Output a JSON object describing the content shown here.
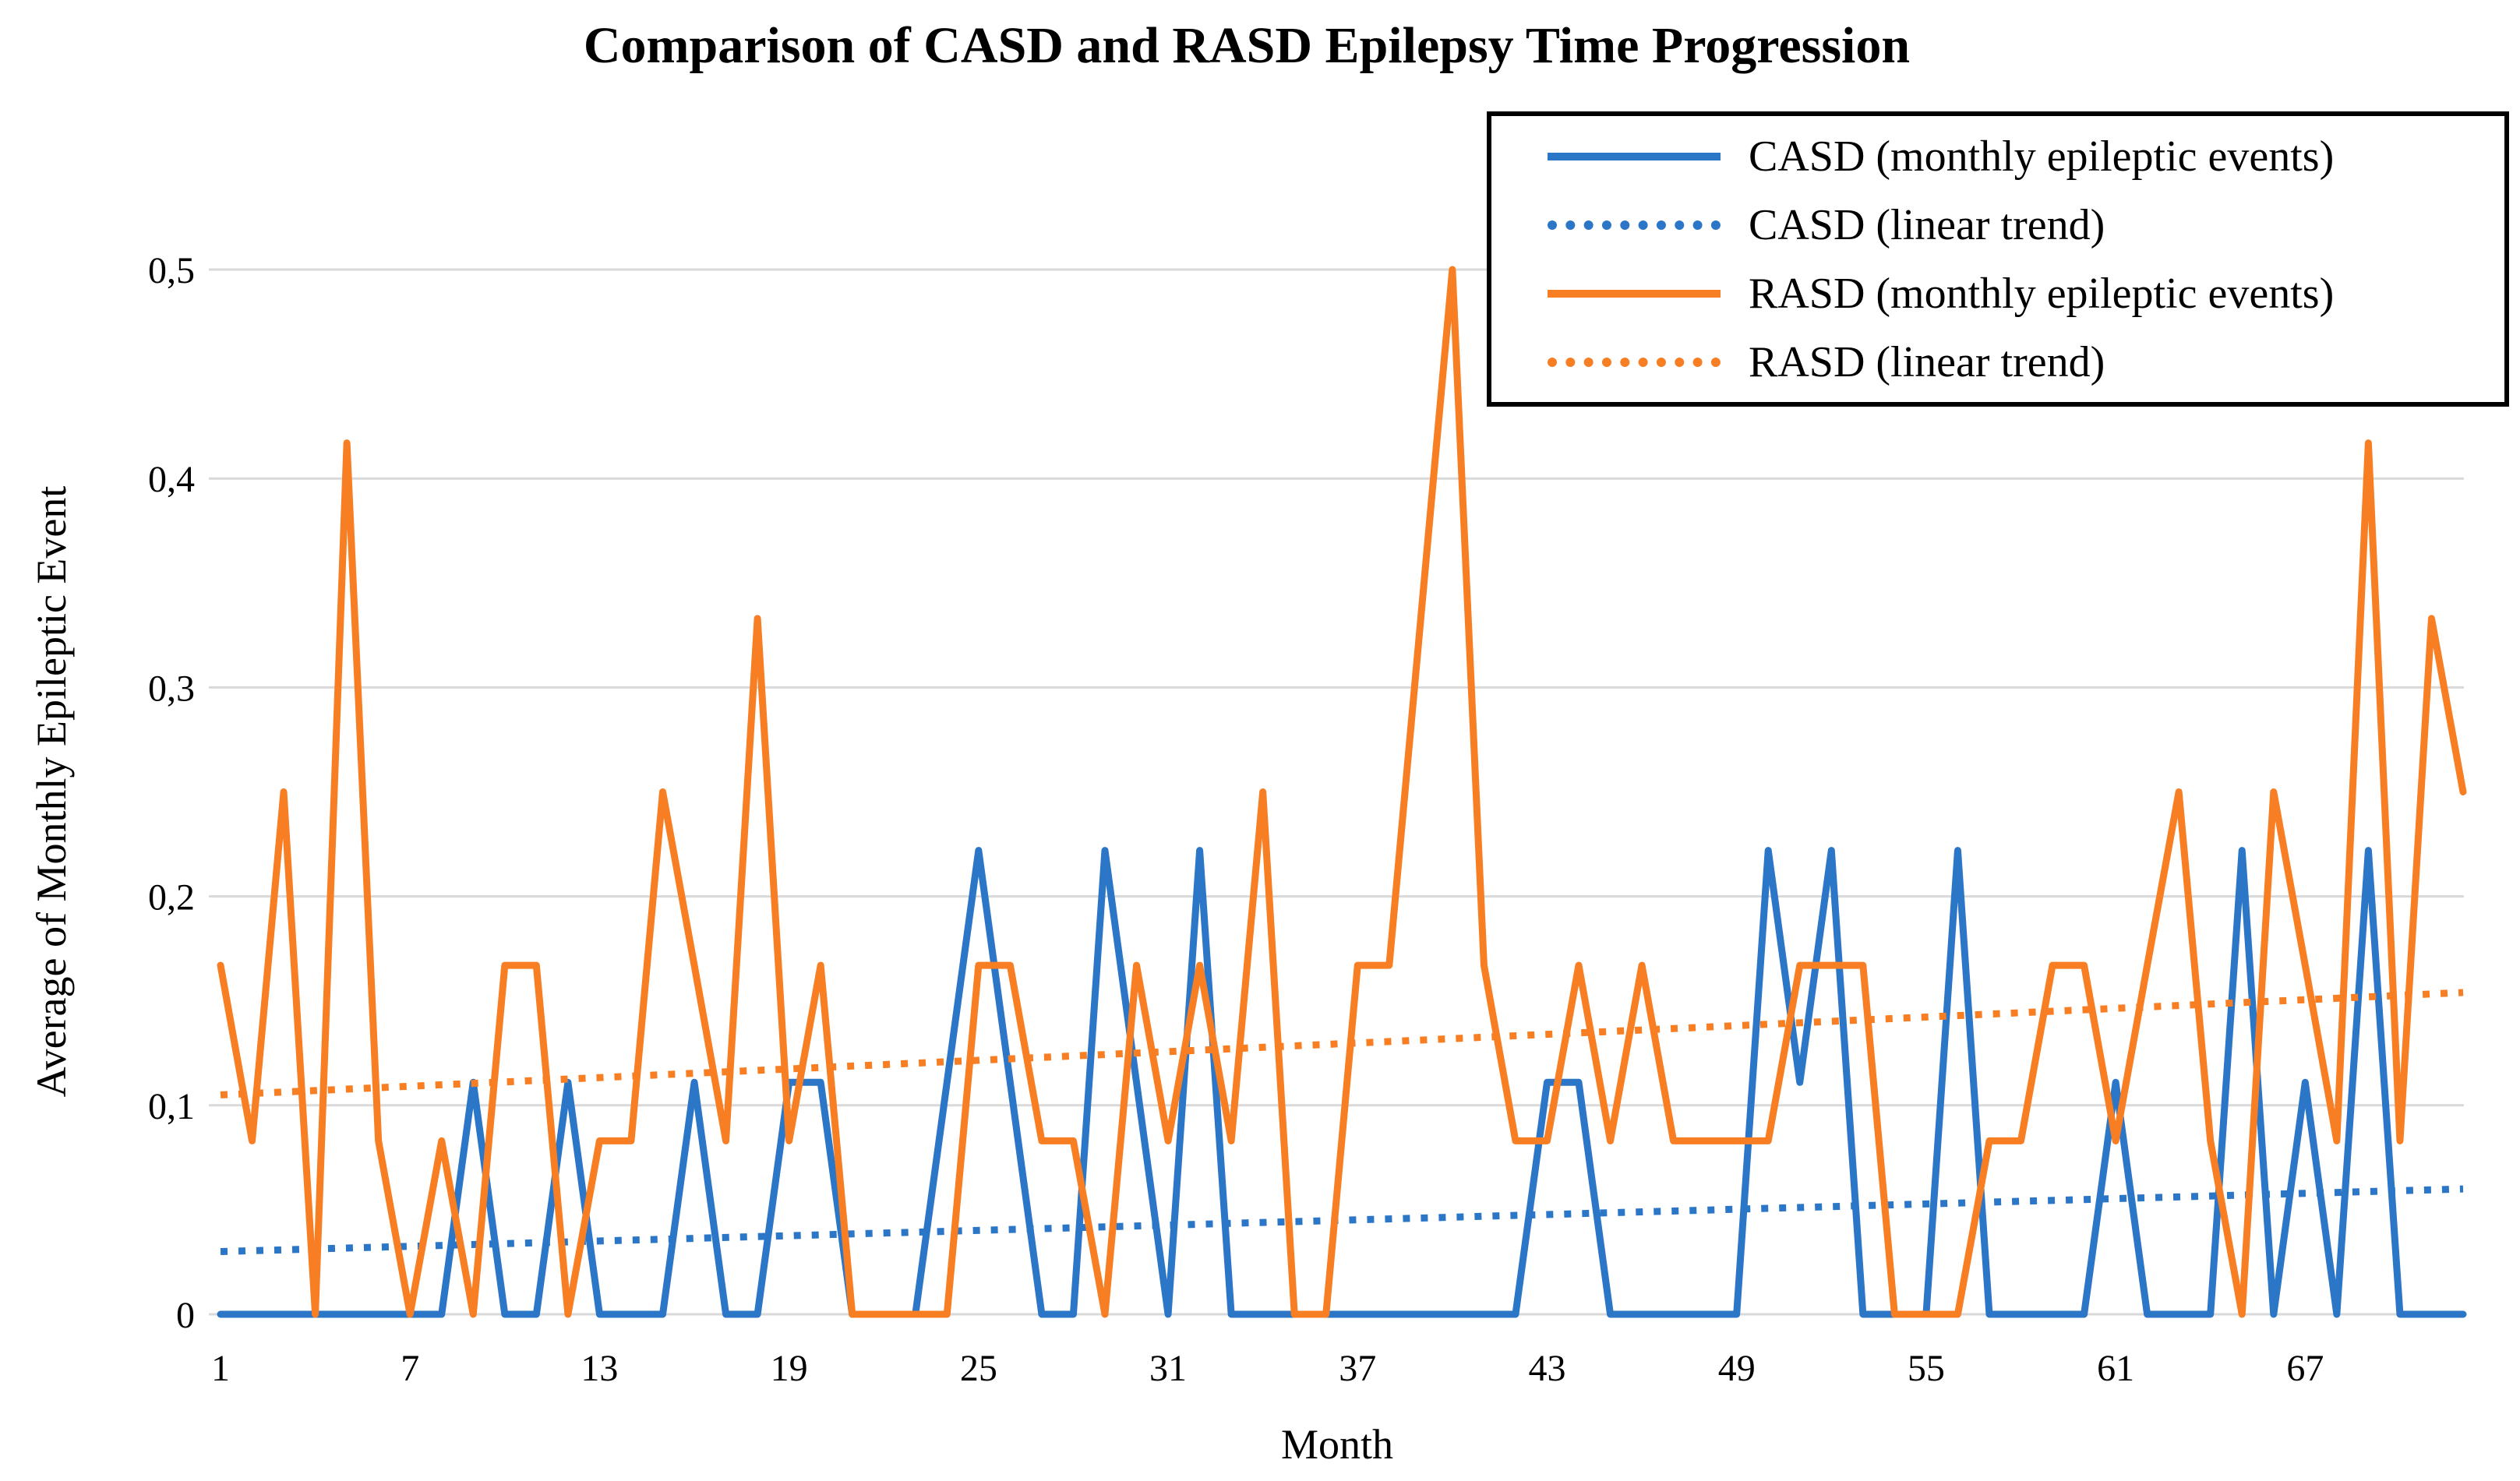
{
  "title": "Comparison of CASD and RASD Epilepsy Time Progression",
  "axes": {
    "x_label": "Month",
    "y_label": "Average of Monthly Epileptic Event",
    "x_ticks": [
      1,
      7,
      13,
      19,
      25,
      31,
      37,
      43,
      49,
      55,
      61,
      67
    ],
    "y_ticks": [
      "0",
      "0,1",
      "0,2",
      "0,3",
      "0,4",
      "0,5"
    ],
    "y_tick_step": 0.1,
    "ylim": [
      0,
      0.5
    ],
    "x_range": [
      1,
      72
    ],
    "grid": true,
    "decimal_separator": ","
  },
  "legend": {
    "position": "top-right",
    "items": [
      {
        "id": "casd-monthly",
        "label": "CASD (monthly epileptic events)",
        "color": "#2B76C6",
        "style": "solid"
      },
      {
        "id": "casd-trend",
        "label": "CASD (linear trend)",
        "color": "#2B76C6",
        "style": "dotted"
      },
      {
        "id": "rasd-monthly",
        "label": "RASD (monthly epileptic events)",
        "color": "#F87E23",
        "style": "solid"
      },
      {
        "id": "rasd-trend",
        "label": "RASD (linear trend)",
        "color": "#F87E23",
        "style": "dotted"
      }
    ]
  },
  "chart_data": {
    "type": "line",
    "title": "Comparison of CASD and RASD Epilepsy Time Progression",
    "xlabel": "Month",
    "ylabel": "Average of Monthly Epileptic Event",
    "ylim": [
      0,
      0.5
    ],
    "grid": true,
    "legend_position": "top-right",
    "x": [
      1,
      2,
      3,
      4,
      5,
      6,
      7,
      8,
      9,
      10,
      11,
      12,
      13,
      14,
      15,
      16,
      17,
      18,
      19,
      20,
      21,
      22,
      23,
      24,
      25,
      26,
      27,
      28,
      29,
      30,
      31,
      32,
      33,
      34,
      35,
      36,
      37,
      38,
      39,
      40,
      41,
      42,
      43,
      44,
      45,
      46,
      47,
      48,
      49,
      50,
      51,
      52,
      53,
      54,
      55,
      56,
      57,
      58,
      59,
      60,
      61,
      62,
      63,
      64,
      65,
      66,
      67,
      68,
      69,
      70,
      71,
      72
    ],
    "series": [
      {
        "name": "CASD (monthly epileptic events)",
        "id": "casd-monthly",
        "color": "#2B76C6",
        "style": "solid",
        "values": [
          0,
          0,
          0,
          0,
          0,
          0,
          0,
          0,
          0.111,
          0,
          0,
          0.111,
          0,
          0,
          0,
          0.111,
          0,
          0,
          0.111,
          0.111,
          0,
          0,
          0,
          0.111,
          0.222,
          0.111,
          0,
          0,
          0.222,
          0.111,
          0,
          0.222,
          0,
          0,
          0,
          0,
          0,
          0,
          0,
          0,
          0,
          0,
          0.111,
          0.111,
          0,
          0,
          0,
          0,
          0,
          0.222,
          0.111,
          0.222,
          0,
          0,
          0,
          0.222,
          0,
          0,
          0,
          0,
          0.111,
          0,
          0,
          0,
          0.222,
          0,
          0.111,
          0,
          0.222,
          0,
          0,
          0
        ]
      },
      {
        "name": "CASD (linear trend)",
        "id": "casd-trend",
        "color": "#2B76C6",
        "style": "dotted",
        "trend": {
          "start": 0.03,
          "end": 0.06
        }
      },
      {
        "name": "RASD (monthly epileptic events)",
        "id": "rasd-monthly",
        "color": "#F87E23",
        "style": "solid",
        "values": [
          0.167,
          0.083,
          0.25,
          0,
          0.417,
          0.083,
          0,
          0.083,
          0,
          0.167,
          0.167,
          0,
          0.083,
          0.083,
          0.25,
          0.167,
          0.083,
          0.333,
          0.083,
          0.167,
          0,
          0,
          0,
          0,
          0.167,
          0.167,
          0.083,
          0.083,
          0,
          0.167,
          0.083,
          0.167,
          0.083,
          0.25,
          0,
          0,
          0.167,
          0.167,
          0.333,
          0.5,
          0.167,
          0.083,
          0.083,
          0.167,
          0.083,
          0.167,
          0.083,
          0.083,
          0.083,
          0.083,
          0.167,
          0.167,
          0.167,
          0,
          0,
          0,
          0.083,
          0.083,
          0.167,
          0.167,
          0.083,
          0.167,
          0.25,
          0.083,
          0,
          0.25,
          0.167,
          0.083,
          0.417,
          0.083,
          0.333,
          0.25
        ]
      },
      {
        "name": "RASD (linear trend)",
        "id": "rasd-trend",
        "color": "#F87E23",
        "style": "dotted",
        "trend": {
          "start": 0.105,
          "end": 0.154
        }
      }
    ],
    "colors": {
      "gridline": "#D9D9D9",
      "text": "#000000",
      "legend_border": "#000000",
      "background": "#ffffff"
    }
  }
}
